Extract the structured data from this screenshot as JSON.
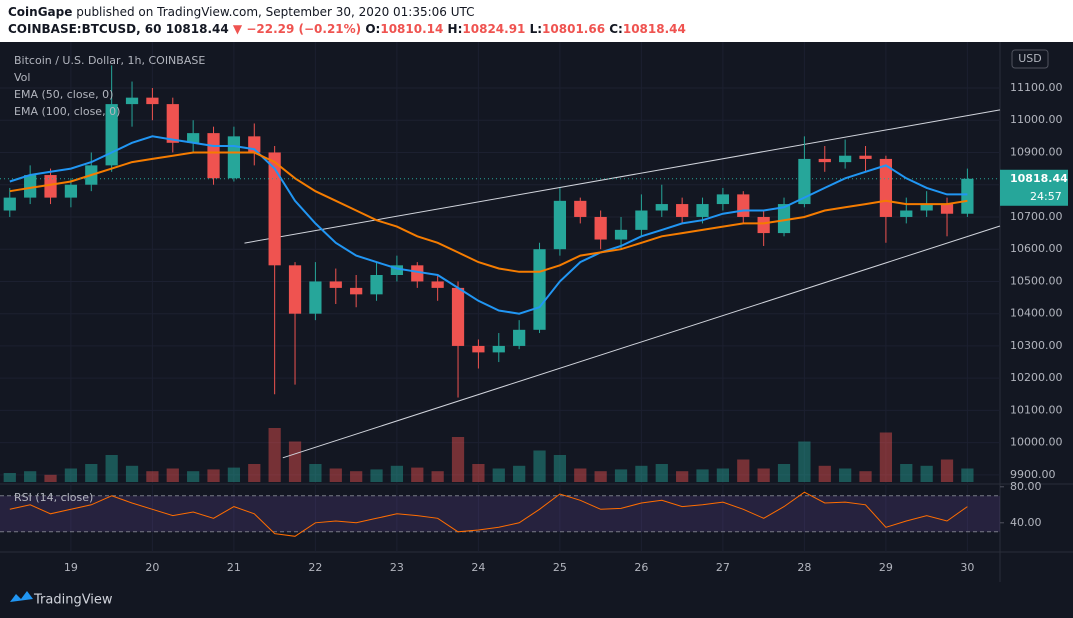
{
  "header": {
    "publisher": "CoinGape",
    "published": "published on TradingView.com, September 30, 2020 01:35:06 UTC",
    "symbol": "COINBASE:BTCUSD, 60",
    "last": "10818.44",
    "change": "▼ −22.29 (−0.21%)",
    "o_label": "O:",
    "o": "10810.14",
    "h_label": "H:",
    "h": "10824.91",
    "l_label": "L:",
    "l": "10801.66",
    "c_label": "C:",
    "c": "10818.44"
  },
  "chart_data": {
    "type": "candlestick",
    "title": "Bitcoin / U.S. Dollar, 1h, COINBASE",
    "currency": "USD",
    "timer": "24:57",
    "brand": "TradingView",
    "x": [
      18.25,
      18.5,
      18.75,
      19,
      19.25,
      19.5,
      19.75,
      20,
      20.25,
      20.5,
      20.75,
      21,
      21.25,
      21.5,
      21.75,
      22,
      22.25,
      22.5,
      22.75,
      23,
      23.25,
      23.5,
      23.75,
      24,
      24.25,
      24.5,
      24.75,
      25,
      25.25,
      25.5,
      25.75,
      26,
      26.25,
      26.5,
      26.75,
      27,
      27.25,
      27.5,
      27.75,
      28,
      28.25,
      28.5,
      28.75,
      29,
      29.25,
      29.5,
      29.75,
      30
    ],
    "candles": {
      "up_color": "#26a69a",
      "down_color": "#ef5350",
      "open": [
        10720,
        10760,
        10830,
        10760,
        10800,
        10860,
        11050,
        11070,
        11050,
        10930,
        10960,
        10820,
        10950,
        10900,
        10550,
        10400,
        10500,
        10480,
        10460,
        10520,
        10550,
        10500,
        10480,
        10300,
        10280,
        10300,
        10350,
        10600,
        10750,
        10700,
        10630,
        10660,
        10720,
        10740,
        10700,
        10740,
        10770,
        10700,
        10650,
        10740,
        10880,
        10870,
        10890,
        10880,
        10700,
        10720,
        10740,
        10710
      ],
      "high": [
        10790,
        10860,
        10850,
        10820,
        10900,
        11170,
        11120,
        11100,
        11070,
        11000,
        10980,
        10980,
        10990,
        10920,
        10560,
        10560,
        10540,
        10520,
        10560,
        10580,
        10560,
        10520,
        10500,
        10320,
        10340,
        10380,
        10620,
        10790,
        10760,
        10720,
        10700,
        10770,
        10800,
        10760,
        10760,
        10790,
        10780,
        10720,
        10760,
        10950,
        10920,
        10940,
        10920,
        10890,
        10760,
        10780,
        10760,
        10850
      ],
      "low": [
        10700,
        10740,
        10740,
        10730,
        10780,
        10840,
        10980,
        11000,
        10900,
        10900,
        10800,
        10810,
        10860,
        10150,
        10180,
        10380,
        10430,
        10420,
        10440,
        10500,
        10480,
        10440,
        10140,
        10230,
        10250,
        10290,
        10340,
        10580,
        10680,
        10600,
        10600,
        10640,
        10700,
        10680,
        10680,
        10720,
        10680,
        10610,
        10640,
        10730,
        10840,
        10850,
        10840,
        10620,
        10680,
        10700,
        10640,
        10700
      ],
      "close": [
        10760,
        10830,
        10760,
        10800,
        10860,
        11050,
        11070,
        11050,
        10930,
        10960,
        10820,
        10950,
        10900,
        10550,
        10400,
        10500,
        10480,
        10460,
        10520,
        10550,
        10500,
        10480,
        10300,
        10280,
        10300,
        10350,
        10600,
        10750,
        10700,
        10630,
        10660,
        10720,
        10740,
        10700,
        10740,
        10770,
        10700,
        10650,
        10740,
        10880,
        10870,
        10890,
        10880,
        10700,
        10720,
        10740,
        10710,
        10818.44
      ]
    },
    "series": [
      {
        "name": "EMA (50, close, 0)",
        "color": "#2196f3",
        "values": [
          10810,
          10830,
          10840,
          10850,
          10870,
          10900,
          10930,
          10950,
          10940,
          10930,
          10920,
          10920,
          10910,
          10850,
          10750,
          10680,
          10620,
          10580,
          10560,
          10540,
          10530,
          10520,
          10480,
          10440,
          10410,
          10400,
          10420,
          10500,
          10560,
          10590,
          10610,
          10640,
          10660,
          10680,
          10690,
          10710,
          10720,
          10720,
          10730,
          10760,
          10790,
          10820,
          10840,
          10860,
          10820,
          10790,
          10770,
          10770
        ]
      },
      {
        "name": "EMA (100, close, 0)",
        "color": "#f57c00",
        "values": [
          10780,
          10790,
          10800,
          10810,
          10830,
          10850,
          10870,
          10880,
          10890,
          10900,
          10900,
          10900,
          10900,
          10870,
          10820,
          10780,
          10750,
          10720,
          10690,
          10670,
          10640,
          10620,
          10590,
          10560,
          10540,
          10530,
          10530,
          10550,
          10580,
          10590,
          10600,
          10620,
          10640,
          10650,
          10660,
          10670,
          10680,
          10680,
          10690,
          10700,
          10720,
          10730,
          10740,
          10750,
          10740,
          10740,
          10740,
          10750
        ]
      }
    ],
    "volume": {
      "name": "Vol",
      "values": [
        10,
        12,
        8,
        15,
        20,
        30,
        18,
        12,
        15,
        12,
        14,
        16,
        20,
        60,
        45,
        20,
        15,
        12,
        14,
        18,
        16,
        12,
        50,
        20,
        15,
        18,
        35,
        30,
        15,
        12,
        14,
        18,
        20,
        12,
        14,
        15,
        25,
        15,
        20,
        45,
        18,
        15,
        12,
        55,
        20,
        18,
        25,
        15
      ]
    },
    "rsi": {
      "name": "RSI (14, close)",
      "color": "#ff6d00",
      "values": [
        55,
        60,
        50,
        55,
        60,
        70,
        62,
        55,
        48,
        52,
        45,
        58,
        50,
        28,
        25,
        40,
        42,
        40,
        45,
        50,
        48,
        45,
        30,
        32,
        35,
        40,
        55,
        72,
        65,
        55,
        56,
        62,
        65,
        58,
        60,
        63,
        55,
        45,
        58,
        74,
        62,
        63,
        60,
        35,
        42,
        48,
        42,
        58
      ],
      "ylim": [
        12,
        82
      ],
      "yticks": [
        {
          "value": 40,
          "label": "40.00"
        },
        {
          "value": 80,
          "label": "80.00"
        }
      ],
      "bands": [
        30,
        70
      ]
    },
    "trendlines": [
      {
        "x": [
          21.13,
          30.4
        ],
        "y": [
          10619,
          11032
        ]
      },
      {
        "x": [
          21.6,
          30.4
        ],
        "y": [
          9953,
          10672
        ]
      }
    ],
    "xlim": [
      18.13,
      30.4
    ],
    "xticks": [
      19,
      20,
      21,
      22,
      23,
      24,
      25,
      26,
      27,
      28,
      29,
      30
    ],
    "ylim": [
      9878,
      11224
    ],
    "yticks": [
      {
        "value": 9900,
        "label": "9900.00"
      },
      {
        "value": 10000,
        "label": "10000.00"
      },
      {
        "value": 10100,
        "label": "10100.00"
      },
      {
        "value": 10200,
        "label": "10200.00"
      },
      {
        "value": 10300,
        "label": "10300.00"
      },
      {
        "value": 10400,
        "label": "10400.00"
      },
      {
        "value": 10500,
        "label": "10500.00"
      },
      {
        "value": 10600,
        "label": "10600.00"
      },
      {
        "value": 10700,
        "label": "10700.00"
      },
      {
        "value": 10800,
        "label": "10800.00"
      },
      {
        "value": 10900,
        "label": "10900.00"
      },
      {
        "value": 11000,
        "label": "11000.00"
      },
      {
        "value": 11100,
        "label": "11100.00"
      }
    ],
    "grid": true
  }
}
